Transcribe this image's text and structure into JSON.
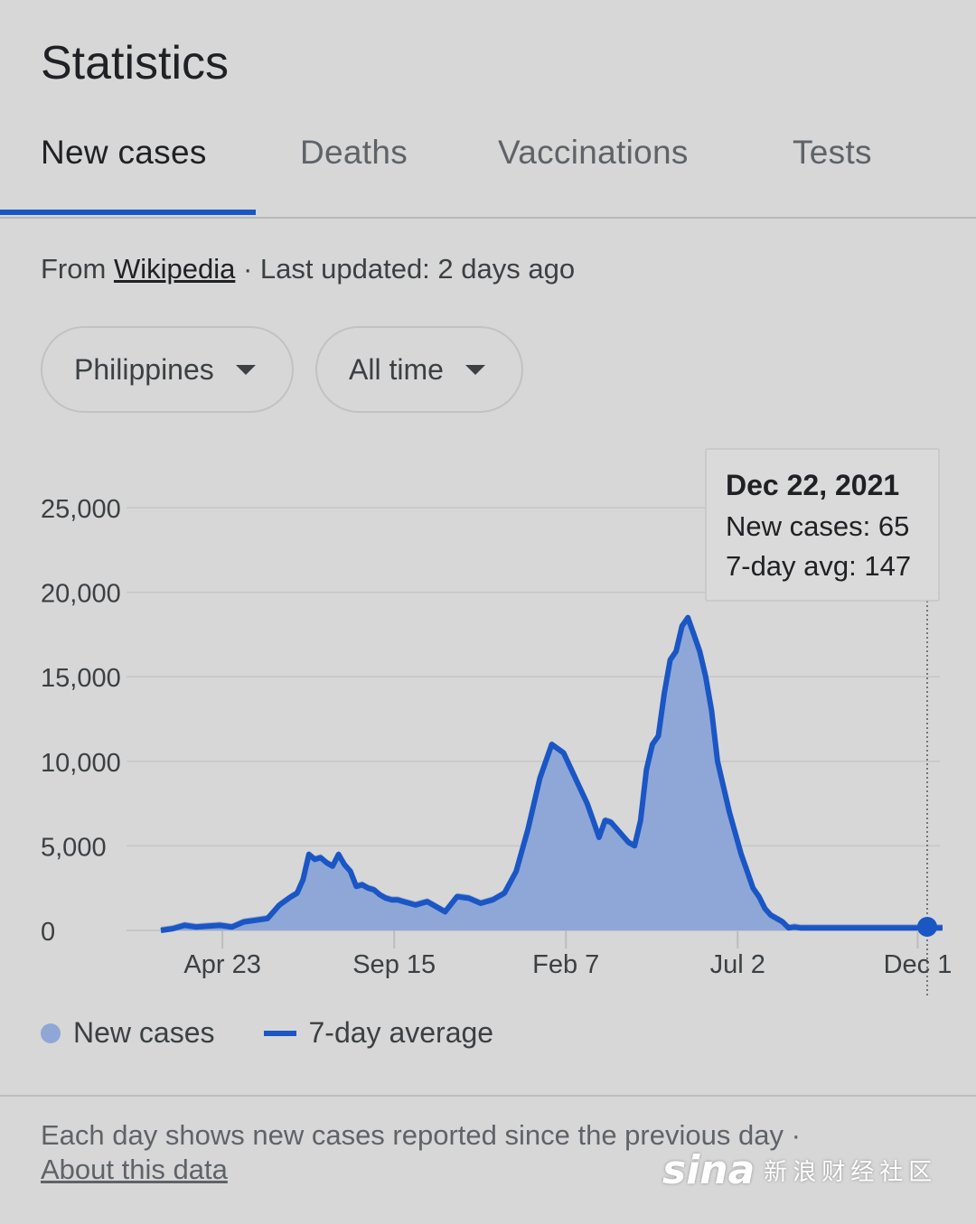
{
  "page_title": "Statistics",
  "tabs": [
    {
      "label": "New cases",
      "active": true
    },
    {
      "label": "Deaths",
      "active": false
    },
    {
      "label": "Vaccinations",
      "active": false
    },
    {
      "label": "Tests",
      "active": false
    }
  ],
  "source": {
    "prefix": "From",
    "link": "Wikipedia",
    "separator": "·",
    "updated": "Last updated: 2 days ago"
  },
  "filters": {
    "location": "Philippines",
    "range": "All time"
  },
  "tooltip": {
    "date": "Dec 22, 2021",
    "new_cases": "New cases: 65",
    "avg": "7-day avg: 147"
  },
  "legend": {
    "bars": "New cases",
    "line": "7-day average"
  },
  "footnote": {
    "text": "Each day shows new cases reported since the previous day",
    "separator": "·",
    "link": "About this data"
  },
  "watermark": {
    "logo": "sina",
    "text": "新浪财经社区"
  },
  "colors": {
    "accent": "#1a56c4",
    "bars": "#8ea7d6",
    "background": "#d7d7d7"
  },
  "chart_data": {
    "type": "area",
    "y_ticks": [
      "0",
      "5,000",
      "10,000",
      "15,000",
      "20,000",
      "25,000"
    ],
    "ylim": [
      0,
      25000
    ],
    "x_ticks": [
      "Apr 23",
      "Sep 15",
      "Feb 7",
      "Jul 2",
      "Dec 1"
    ],
    "x_tick_positions_days": [
      52,
      197,
      342,
      487,
      639
    ],
    "x_range_days": [
      0,
      660
    ],
    "grid": true,
    "highlight_day": 660,
    "series": [
      {
        "name": "7-day average",
        "x": [
          0,
          10,
          20,
          30,
          40,
          50,
          60,
          70,
          80,
          90,
          100,
          110,
          115,
          120,
          125,
          130,
          135,
          140,
          145,
          150,
          155,
          160,
          165,
          170,
          175,
          180,
          185,
          190,
          195,
          200,
          205,
          210,
          215,
          220,
          225,
          230,
          240,
          250,
          260,
          270,
          280,
          290,
          300,
          310,
          320,
          330,
          340,
          350,
          360,
          365,
          370,
          375,
          380,
          385,
          390,
          395,
          400,
          405,
          410,
          415,
          420,
          425,
          430,
          435,
          440,
          445,
          450,
          455,
          460,
          465,
          470,
          480,
          490,
          495,
          500,
          505,
          510,
          515,
          520,
          525,
          530,
          535,
          540,
          545,
          550,
          555,
          560,
          565,
          570,
          575,
          580,
          585,
          590,
          595,
          600,
          605,
          610,
          615,
          620,
          625,
          630,
          640,
          650,
          660
        ],
        "values": [
          0,
          100,
          300,
          200,
          250,
          300,
          200,
          500,
          600,
          700,
          1500,
          2000,
          2200,
          3000,
          4500,
          4200,
          4300,
          4000,
          3800,
          4500,
          3900,
          3500,
          2600,
          2700,
          2500,
          2400,
          2100,
          1900,
          1800,
          1800,
          1700,
          1600,
          1500,
          1600,
          1700,
          1500,
          1100,
          2000,
          1900,
          1600,
          1800,
          2200,
          3500,
          6000,
          9000,
          11000,
          10500,
          9000,
          7500,
          6500,
          5500,
          6500,
          6400,
          6000,
          5600,
          5200,
          5000,
          6500,
          9500,
          11000,
          11500,
          14000,
          16000,
          16500,
          18000,
          18500,
          17500,
          16500,
          15000,
          13000,
          10000,
          7000,
          4500,
          3500,
          2500,
          2000,
          1300,
          900,
          700,
          500,
          147,
          200,
          150,
          147,
          147,
          147,
          147,
          147,
          147,
          147,
          147,
          147,
          147,
          147,
          147,
          147,
          147,
          147,
          147,
          147,
          147,
          147,
          147,
          147
        ],
        "values_note_unused": true
      }
    ]
  }
}
